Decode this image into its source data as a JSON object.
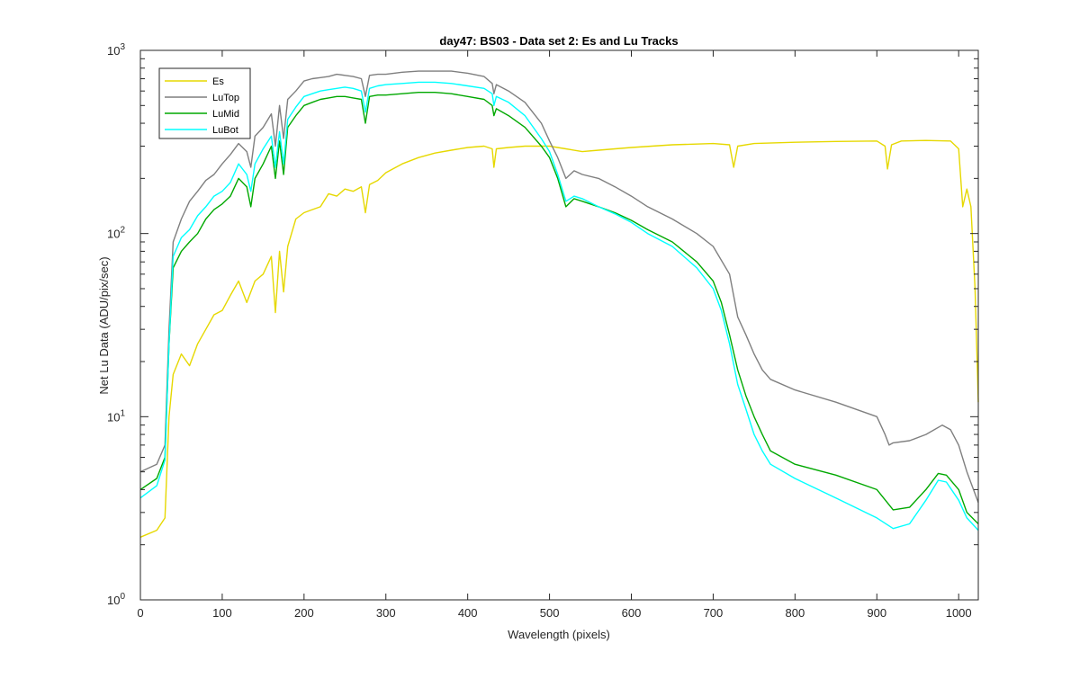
{
  "chart_data": {
    "type": "line",
    "title": "day47: BS03 - Data set 2: Es and Lu Tracks",
    "xlabel": "Wavelength (pixels)",
    "ylabel": "Net Lu Data (ADU/pix/sec)",
    "xlim": [
      0,
      1024
    ],
    "ylim": [
      1,
      1000
    ],
    "yscale": "log",
    "grid": false,
    "legend_position": "top-left",
    "x_ticks": [
      0,
      100,
      200,
      300,
      400,
      500,
      600,
      700,
      800,
      900,
      1000
    ],
    "x_tick_labels": [
      "0",
      "100",
      "200",
      "300",
      "400",
      "500",
      "600",
      "700",
      "800",
      "900",
      "1000"
    ],
    "y_ticks": [
      1,
      10,
      100,
      1000
    ],
    "y_tick_labels": [
      {
        "base": "10",
        "exp": "0"
      },
      {
        "base": "10",
        "exp": "1"
      },
      {
        "base": "10",
        "exp": "2"
      },
      {
        "base": "10",
        "exp": "3"
      }
    ],
    "series": [
      {
        "name": "Es",
        "color": "#e6d800",
        "points": [
          [
            0,
            2.2
          ],
          [
            20,
            2.4
          ],
          [
            30,
            2.8
          ],
          [
            35,
            10
          ],
          [
            40,
            17
          ],
          [
            50,
            22
          ],
          [
            60,
            19
          ],
          [
            70,
            25
          ],
          [
            80,
            30
          ],
          [
            90,
            36
          ],
          [
            100,
            38
          ],
          [
            110,
            46
          ],
          [
            120,
            55
          ],
          [
            130,
            42
          ],
          [
            140,
            55
          ],
          [
            150,
            60
          ],
          [
            160,
            75
          ],
          [
            165,
            37
          ],
          [
            170,
            80
          ],
          [
            175,
            48
          ],
          [
            180,
            85
          ],
          [
            190,
            120
          ],
          [
            200,
            130
          ],
          [
            210,
            135
          ],
          [
            220,
            140
          ],
          [
            230,
            165
          ],
          [
            240,
            160
          ],
          [
            250,
            175
          ],
          [
            260,
            170
          ],
          [
            270,
            180
          ],
          [
            275,
            130
          ],
          [
            280,
            185
          ],
          [
            290,
            195
          ],
          [
            300,
            215
          ],
          [
            320,
            240
          ],
          [
            340,
            260
          ],
          [
            360,
            275
          ],
          [
            380,
            285
          ],
          [
            400,
            295
          ],
          [
            420,
            300
          ],
          [
            430,
            290
          ],
          [
            432,
            230
          ],
          [
            435,
            290
          ],
          [
            450,
            295
          ],
          [
            470,
            300
          ],
          [
            500,
            300
          ],
          [
            520,
            290
          ],
          [
            540,
            280
          ],
          [
            560,
            285
          ],
          [
            600,
            295
          ],
          [
            650,
            305
          ],
          [
            700,
            310
          ],
          [
            720,
            305
          ],
          [
            725,
            230
          ],
          [
            730,
            300
          ],
          [
            750,
            310
          ],
          [
            800,
            315
          ],
          [
            850,
            318
          ],
          [
            900,
            320
          ],
          [
            910,
            300
          ],
          [
            913,
            225
          ],
          [
            918,
            305
          ],
          [
            930,
            320
          ],
          [
            960,
            322
          ],
          [
            990,
            320
          ],
          [
            1000,
            290
          ],
          [
            1005,
            140
          ],
          [
            1010,
            175
          ],
          [
            1015,
            140
          ],
          [
            1020,
            50
          ],
          [
            1024,
            12
          ]
        ]
      },
      {
        "name": "LuTop",
        "color": "#7f7f7f",
        "points": [
          [
            0,
            5
          ],
          [
            20,
            5.5
          ],
          [
            30,
            7
          ],
          [
            35,
            30
          ],
          [
            40,
            90
          ],
          [
            50,
            120
          ],
          [
            60,
            150
          ],
          [
            70,
            170
          ],
          [
            80,
            195
          ],
          [
            90,
            210
          ],
          [
            100,
            240
          ],
          [
            110,
            270
          ],
          [
            120,
            310
          ],
          [
            130,
            280
          ],
          [
            135,
            230
          ],
          [
            140,
            340
          ],
          [
            150,
            380
          ],
          [
            160,
            450
          ],
          [
            165,
            300
          ],
          [
            170,
            500
          ],
          [
            175,
            330
          ],
          [
            180,
            540
          ],
          [
            190,
            600
          ],
          [
            200,
            680
          ],
          [
            210,
            700
          ],
          [
            220,
            710
          ],
          [
            230,
            720
          ],
          [
            240,
            740
          ],
          [
            250,
            730
          ],
          [
            260,
            720
          ],
          [
            270,
            700
          ],
          [
            275,
            560
          ],
          [
            280,
            730
          ],
          [
            290,
            740
          ],
          [
            300,
            740
          ],
          [
            320,
            760
          ],
          [
            340,
            770
          ],
          [
            360,
            770
          ],
          [
            380,
            770
          ],
          [
            400,
            750
          ],
          [
            420,
            720
          ],
          [
            430,
            660
          ],
          [
            432,
            580
          ],
          [
            435,
            650
          ],
          [
            450,
            600
          ],
          [
            470,
            520
          ],
          [
            490,
            400
          ],
          [
            500,
            320
          ],
          [
            510,
            260
          ],
          [
            520,
            200
          ],
          [
            530,
            220
          ],
          [
            540,
            210
          ],
          [
            560,
            200
          ],
          [
            580,
            180
          ],
          [
            600,
            160
          ],
          [
            620,
            140
          ],
          [
            650,
            120
          ],
          [
            680,
            100
          ],
          [
            700,
            85
          ],
          [
            720,
            60
          ],
          [
            730,
            35
          ],
          [
            740,
            28
          ],
          [
            750,
            22
          ],
          [
            760,
            18
          ],
          [
            770,
            16
          ],
          [
            800,
            14
          ],
          [
            850,
            12
          ],
          [
            900,
            10
          ],
          [
            910,
            8
          ],
          [
            915,
            7
          ],
          [
            920,
            7.2
          ],
          [
            940,
            7.4
          ],
          [
            960,
            8
          ],
          [
            980,
            9
          ],
          [
            990,
            8.5
          ],
          [
            1000,
            7
          ],
          [
            1010,
            5
          ],
          [
            1024,
            3.4
          ]
        ]
      },
      {
        "name": "LuMid",
        "color": "#00a800",
        "points": [
          [
            0,
            4
          ],
          [
            20,
            4.6
          ],
          [
            30,
            6
          ],
          [
            35,
            25
          ],
          [
            40,
            65
          ],
          [
            50,
            80
          ],
          [
            60,
            90
          ],
          [
            70,
            100
          ],
          [
            80,
            120
          ],
          [
            90,
            135
          ],
          [
            100,
            145
          ],
          [
            110,
            160
          ],
          [
            120,
            200
          ],
          [
            130,
            180
          ],
          [
            135,
            140
          ],
          [
            140,
            200
          ],
          [
            150,
            240
          ],
          [
            160,
            300
          ],
          [
            165,
            200
          ],
          [
            170,
            320
          ],
          [
            175,
            210
          ],
          [
            180,
            380
          ],
          [
            190,
            440
          ],
          [
            200,
            500
          ],
          [
            210,
            520
          ],
          [
            220,
            540
          ],
          [
            230,
            550
          ],
          [
            240,
            560
          ],
          [
            250,
            560
          ],
          [
            260,
            550
          ],
          [
            270,
            540
          ],
          [
            275,
            400
          ],
          [
            280,
            560
          ],
          [
            290,
            570
          ],
          [
            300,
            570
          ],
          [
            320,
            580
          ],
          [
            340,
            590
          ],
          [
            360,
            590
          ],
          [
            380,
            580
          ],
          [
            400,
            560
          ],
          [
            420,
            540
          ],
          [
            430,
            500
          ],
          [
            432,
            440
          ],
          [
            435,
            480
          ],
          [
            450,
            440
          ],
          [
            470,
            380
          ],
          [
            490,
            300
          ],
          [
            500,
            260
          ],
          [
            510,
            200
          ],
          [
            520,
            140
          ],
          [
            530,
            155
          ],
          [
            540,
            150
          ],
          [
            560,
            140
          ],
          [
            580,
            130
          ],
          [
            600,
            118
          ],
          [
            620,
            105
          ],
          [
            650,
            90
          ],
          [
            680,
            70
          ],
          [
            700,
            55
          ],
          [
            710,
            42
          ],
          [
            720,
            28
          ],
          [
            730,
            18
          ],
          [
            740,
            13
          ],
          [
            750,
            10
          ],
          [
            760,
            8
          ],
          [
            770,
            6.5
          ],
          [
            800,
            5.5
          ],
          [
            850,
            4.8
          ],
          [
            900,
            4
          ],
          [
            920,
            3.1
          ],
          [
            940,
            3.2
          ],
          [
            960,
            4
          ],
          [
            975,
            4.9
          ],
          [
            985,
            4.8
          ],
          [
            1000,
            4
          ],
          [
            1010,
            3
          ],
          [
            1024,
            2.6
          ]
        ]
      },
      {
        "name": "LuBot",
        "color": "#00ffff",
        "points": [
          [
            0,
            3.6
          ],
          [
            20,
            4.2
          ],
          [
            30,
            5.8
          ],
          [
            35,
            25
          ],
          [
            40,
            75
          ],
          [
            50,
            95
          ],
          [
            60,
            105
          ],
          [
            70,
            125
          ],
          [
            80,
            140
          ],
          [
            90,
            160
          ],
          [
            100,
            170
          ],
          [
            110,
            190
          ],
          [
            120,
            240
          ],
          [
            130,
            210
          ],
          [
            135,
            170
          ],
          [
            140,
            240
          ],
          [
            150,
            290
          ],
          [
            160,
            340
          ],
          [
            165,
            230
          ],
          [
            170,
            360
          ],
          [
            175,
            240
          ],
          [
            180,
            420
          ],
          [
            190,
            490
          ],
          [
            200,
            560
          ],
          [
            210,
            580
          ],
          [
            220,
            600
          ],
          [
            230,
            610
          ],
          [
            240,
            620
          ],
          [
            250,
            630
          ],
          [
            260,
            620
          ],
          [
            270,
            600
          ],
          [
            275,
            460
          ],
          [
            280,
            620
          ],
          [
            290,
            640
          ],
          [
            300,
            650
          ],
          [
            320,
            660
          ],
          [
            340,
            670
          ],
          [
            360,
            670
          ],
          [
            380,
            660
          ],
          [
            400,
            640
          ],
          [
            420,
            620
          ],
          [
            430,
            580
          ],
          [
            432,
            500
          ],
          [
            435,
            560
          ],
          [
            450,
            520
          ],
          [
            470,
            440
          ],
          [
            490,
            330
          ],
          [
            500,
            280
          ],
          [
            510,
            210
          ],
          [
            520,
            150
          ],
          [
            530,
            160
          ],
          [
            540,
            155
          ],
          [
            560,
            140
          ],
          [
            580,
            128
          ],
          [
            600,
            115
          ],
          [
            620,
            100
          ],
          [
            650,
            85
          ],
          [
            680,
            65
          ],
          [
            700,
            50
          ],
          [
            710,
            38
          ],
          [
            720,
            25
          ],
          [
            730,
            15
          ],
          [
            740,
            11
          ],
          [
            750,
            8
          ],
          [
            760,
            6.5
          ],
          [
            770,
            5.5
          ],
          [
            800,
            4.6
          ],
          [
            850,
            3.6
          ],
          [
            900,
            2.8
          ],
          [
            920,
            2.45
          ],
          [
            940,
            2.6
          ],
          [
            960,
            3.5
          ],
          [
            975,
            4.5
          ],
          [
            985,
            4.4
          ],
          [
            1000,
            3.5
          ],
          [
            1010,
            2.8
          ],
          [
            1024,
            2.4
          ]
        ]
      }
    ]
  }
}
